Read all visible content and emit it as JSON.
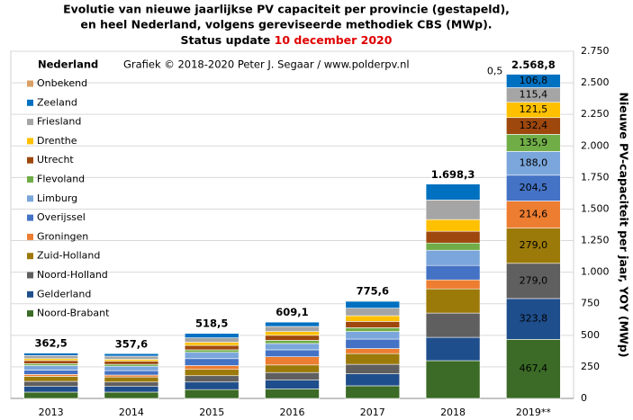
{
  "chart_data": {
    "type": "stacked_bar",
    "title_lines": [
      "Evolutie van nieuwe jaarlijkse PV capaciteit per provincie (gestapeld),",
      "en heel Nederland, volgens gereviseerde methodiek CBS (MWp)."
    ],
    "status_prefix": "Status update",
    "status_date": "10 december 2020",
    "legend_title": "Nederland",
    "annotation": "Grafiek © 2018-2020 Peter J. Segaar / www.polderpv.nl",
    "y_axis_label": "Nieuwe PV-capaciteit per jaar, YOY (MWp)",
    "categories": [
      "2013",
      "2014",
      "2015",
      "2016",
      "2017",
      "2018",
      "2019**"
    ],
    "series": [
      {
        "name": "Noord-Brabant",
        "color": "#3b6b26",
        "values": [
          50,
          50,
          70,
          75,
          100,
          299,
          467.4
        ],
        "value_labels": [
          null,
          null,
          null,
          null,
          null,
          null,
          "467,4"
        ]
      },
      {
        "name": "Gelderland",
        "color": "#1f4e8c",
        "values": [
          45,
          45,
          60,
          70,
          95,
          185,
          323.8
        ],
        "value_labels": [
          null,
          null,
          null,
          null,
          null,
          null,
          "323,8"
        ]
      },
      {
        "name": "Noord-Holland",
        "color": "#5f5f5f",
        "values": [
          40,
          35,
          50,
          60,
          75,
          192,
          279.0
        ],
        "value_labels": [
          null,
          null,
          null,
          null,
          null,
          null,
          "279,0"
        ]
      },
      {
        "name": "Zuid-Holland",
        "color": "#9c7a0a",
        "values": [
          40,
          40,
          50,
          60,
          85,
          192,
          279.0
        ],
        "value_labels": [
          null,
          null,
          null,
          null,
          null,
          null,
          "279,0"
        ]
      },
      {
        "name": "Groningen",
        "color": "#ed7d31",
        "values": [
          15,
          15,
          30,
          65,
          40,
          71,
          214.6
        ],
        "value_labels": [
          null,
          null,
          null,
          null,
          null,
          null,
          "214,6"
        ]
      },
      {
        "name": "Overijssel",
        "color": "#4472c4",
        "values": [
          35,
          35,
          55,
          55,
          75,
          114,
          204.5
        ],
        "value_labels": [
          null,
          null,
          null,
          null,
          null,
          null,
          "204,5"
        ]
      },
      {
        "name": "Limburg",
        "color": "#7aa6dc",
        "values": [
          35,
          35,
          50,
          50,
          60,
          121,
          188.0
        ],
        "value_labels": [
          null,
          null,
          null,
          null,
          null,
          null,
          "188,0"
        ]
      },
      {
        "name": "Flevoland",
        "color": "#70ad47",
        "values": [
          15,
          15,
          20,
          25,
          30,
          57,
          135.9
        ],
        "value_labels": [
          null,
          null,
          null,
          null,
          null,
          null,
          "135,9"
        ]
      },
      {
        "name": "Utrecht",
        "color": "#9e480e",
        "values": [
          25,
          25,
          35,
          40,
          50,
          93,
          132.4
        ],
        "value_labels": [
          null,
          null,
          null,
          null,
          null,
          null,
          "132,4"
        ]
      },
      {
        "name": "Drenthe",
        "color": "#ffc000",
        "values": [
          15,
          15,
          25,
          30,
          45,
          93,
          121.5
        ],
        "value_labels": [
          null,
          null,
          null,
          null,
          null,
          null,
          "121,5"
        ]
      },
      {
        "name": "Friesland",
        "color": "#a5a5a5",
        "values": [
          25,
          25,
          35,
          40,
          60,
          155,
          115.4
        ],
        "value_labels": [
          null,
          null,
          null,
          null,
          null,
          null,
          "115,4"
        ]
      },
      {
        "name": "Zeeland",
        "color": "#0070c0",
        "values": [
          20,
          20,
          35,
          35,
          55,
          126,
          106.8
        ],
        "value_labels": [
          null,
          null,
          null,
          null,
          null,
          null,
          "106,8"
        ]
      },
      {
        "name": "Onbekend",
        "color": "#d9a066",
        "values": [
          2.5,
          2.6,
          3.5,
          4.1,
          5.6,
          0.3,
          0.5
        ],
        "value_labels": [
          null,
          null,
          null,
          null,
          null,
          null,
          "0,5"
        ]
      }
    ],
    "totals": [
      362.5,
      357.6,
      518.5,
      609.1,
      775.6,
      1698.3,
      2568.8
    ],
    "total_labels": [
      "362,5",
      "357,6",
      "518,5",
      "609,1",
      "775,6",
      "1.698,3",
      "2.568,8"
    ],
    "ylim": [
      0,
      2750
    ],
    "yticks": [
      0,
      250,
      500,
      750,
      {
        "value": 1000,
        "label": "1.000"
      },
      {
        "value": 1250,
        "label": "1.250"
      },
      {
        "value": 1500,
        "label": "1.500"
      },
      {
        "value": 1750,
        "label": "1.750"
      },
      {
        "value": 2000,
        "label": "2.000"
      },
      {
        "value": 2250,
        "label": "2.250"
      },
      {
        "value": 2500,
        "label": "2.500"
      },
      {
        "value": 2750,
        "label": "2.750"
      }
    ],
    "grid": true
  }
}
